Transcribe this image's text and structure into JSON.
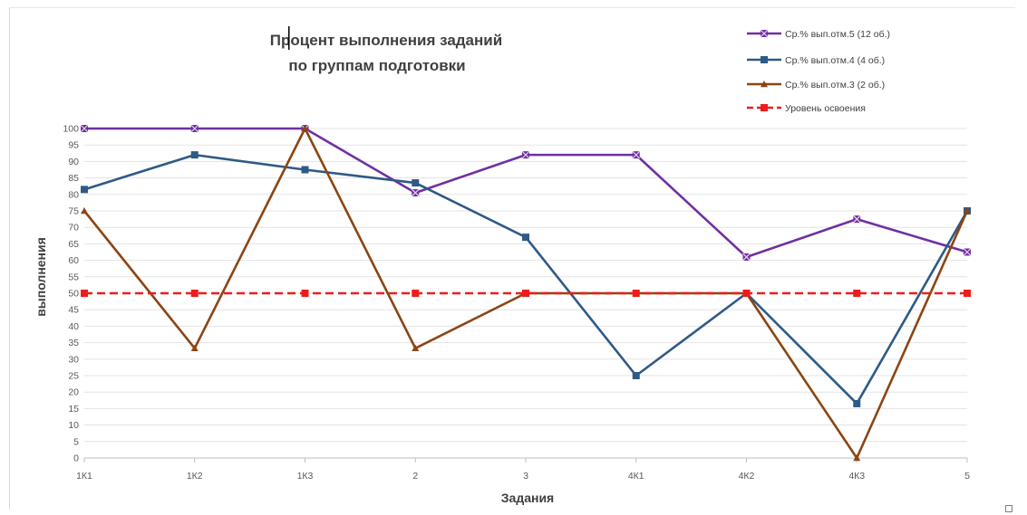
{
  "chart_data": {
    "type": "line",
    "title_lines": [
      "Процент выполнения  заданий",
      "по группам подготовки"
    ],
    "xlabel": "Задания",
    "ylabel": "выполнения",
    "categories": [
      "1К1",
      "1К2",
      "1К3",
      "2",
      "3",
      "4К1",
      "4К2",
      "4К3",
      "5"
    ],
    "ylim": [
      0,
      100
    ],
    "yticks": [
      0,
      5,
      10,
      15,
      20,
      25,
      30,
      35,
      40,
      45,
      50,
      55,
      60,
      65,
      70,
      75,
      80,
      85,
      90,
      95,
      100
    ],
    "grid": true,
    "legend_position": "top-right",
    "series": [
      {
        "name": "Ср.% вып.отм.5  (12 об.)",
        "color": "#7030a0",
        "marker": "x-square",
        "dash": false,
        "values": [
          100,
          100,
          100,
          80.5,
          92,
          92,
          61,
          72.5,
          62.5
        ]
      },
      {
        "name": "Ср.% вып.отм.4  (4 об.)",
        "color": "#2e5a87",
        "marker": "square",
        "dash": false,
        "values": [
          81.5,
          92,
          87.5,
          83.5,
          67,
          25,
          50,
          16.5,
          75
        ]
      },
      {
        "name": "Ср.% вып.отм.3  (2 об.)",
        "color": "#8b4513",
        "marker": "triangle",
        "dash": false,
        "values": [
          75,
          33.3,
          100,
          33.3,
          50,
          50,
          50,
          0,
          75
        ]
      },
      {
        "name": "Уровень освоения",
        "color": "#ee1c1c",
        "marker": "square",
        "dash": true,
        "values": [
          50,
          50,
          50,
          50,
          50,
          50,
          50,
          50,
          50
        ]
      }
    ]
  }
}
